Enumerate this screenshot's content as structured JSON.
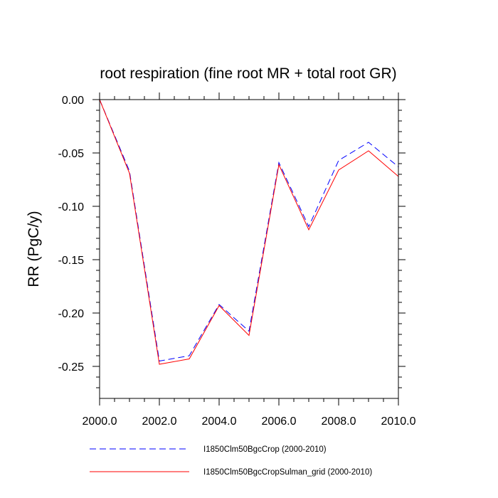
{
  "chart_data": {
    "type": "line",
    "title": "root respiration (fine root MR + total root GR)",
    "xlabel": "",
    "ylabel": "RR  (PgC/y)",
    "xlim": [
      2000,
      2010
    ],
    "ylim": [
      -0.28,
      0.0
    ],
    "x_ticks": [
      2000,
      2002,
      2004,
      2006,
      2008,
      2010
    ],
    "x_tick_labels": [
      "2000.0",
      "2002.0",
      "2004.0",
      "2006.0",
      "2008.0",
      "2010.0"
    ],
    "y_ticks": [
      0.0,
      -0.05,
      -0.1,
      -0.15,
      -0.2,
      -0.25
    ],
    "y_tick_labels": [
      "0.00",
      "-0.05",
      "-0.10",
      "-0.15",
      "-0.20",
      "-0.25"
    ],
    "x": [
      2000,
      2001,
      2002,
      2003,
      2004,
      2005,
      2006,
      2007,
      2008,
      2009,
      2010
    ],
    "series": [
      {
        "name": "I1850Clm50BgcCrop (2000-2010)",
        "color": "#0000ff",
        "style": "dashed",
        "values": [
          0.0,
          -0.067,
          -0.245,
          -0.24,
          -0.192,
          -0.217,
          -0.059,
          -0.119,
          -0.057,
          -0.04,
          -0.063
        ]
      },
      {
        "name": "I1850Clm50BgcCropSulman_grid (2000-2010)",
        "color": "#ff0000",
        "style": "solid",
        "values": [
          0.0,
          -0.069,
          -0.248,
          -0.243,
          -0.193,
          -0.221,
          -0.061,
          -0.122,
          -0.066,
          -0.048,
          -0.072
        ]
      }
    ],
    "grid": false,
    "legend_position": "bottom"
  }
}
